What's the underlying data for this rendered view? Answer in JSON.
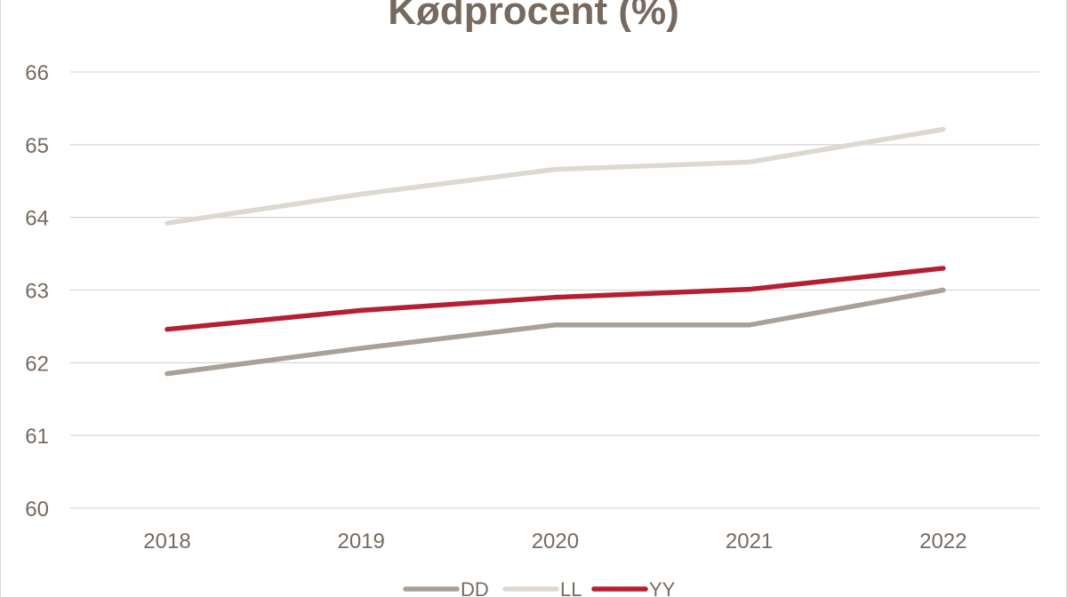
{
  "chart_data": {
    "type": "line",
    "title": "Kødprocent (%)",
    "xlabel": "",
    "ylabel": "",
    "categories": [
      "2018",
      "2019",
      "2020",
      "2021",
      "2022"
    ],
    "y_ticks": [
      "60",
      "61",
      "62",
      "63",
      "64",
      "65",
      "66"
    ],
    "ylim": [
      60,
      66
    ],
    "grid": true,
    "legend_position": "bottom",
    "series": [
      {
        "name": "DD",
        "color": "#a9a097",
        "values": [
          61.85,
          62.2,
          62.52,
          62.52,
          63.0
        ]
      },
      {
        "name": "LL",
        "color": "#ddd8d1",
        "values": [
          63.92,
          64.32,
          64.66,
          64.76,
          65.21
        ]
      },
      {
        "name": "YY",
        "color": "#b61f33",
        "values": [
          62.46,
          62.72,
          62.9,
          63.01,
          63.3
        ]
      }
    ]
  }
}
